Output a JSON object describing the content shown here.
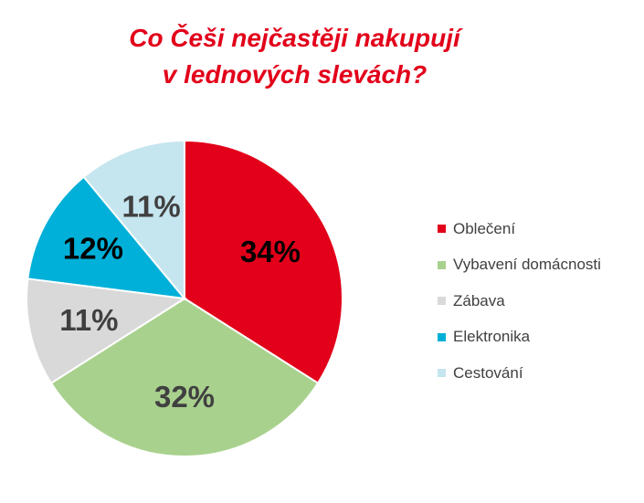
{
  "title": {
    "line1": "Co Češi nejčastěji nakupují",
    "line2": "v lednových slevách?"
  },
  "colors": {
    "title": "#e2001a",
    "label_text": "#404040",
    "label_text_dark": "#000000"
  },
  "chart_data": {
    "type": "pie",
    "title": "Co Češi nejčastěji nakupují v lednových slevách?",
    "legend_position": "right",
    "start_angle": "12 o'clock, clockwise",
    "slices": [
      {
        "name": "Oblečení",
        "value": 34,
        "label": "34%",
        "color": "#e2001a",
        "label_color": "#000000"
      },
      {
        "name": "Vybavení domácnosti",
        "value": 32,
        "label": "32%",
        "color": "#a9d18e",
        "label_color": "#404040"
      },
      {
        "name": "Zábava",
        "value": 11,
        "label": "11%",
        "color": "#d9d9d9",
        "label_color": "#404040"
      },
      {
        "name": "Elektronika",
        "value": 12,
        "label": "12%",
        "color": "#00b0d8",
        "label_color": "#000000"
      },
      {
        "name": "Cestování",
        "value": 11,
        "label": "11%",
        "color": "#c5e5ef",
        "label_color": "#404040"
      }
    ]
  }
}
